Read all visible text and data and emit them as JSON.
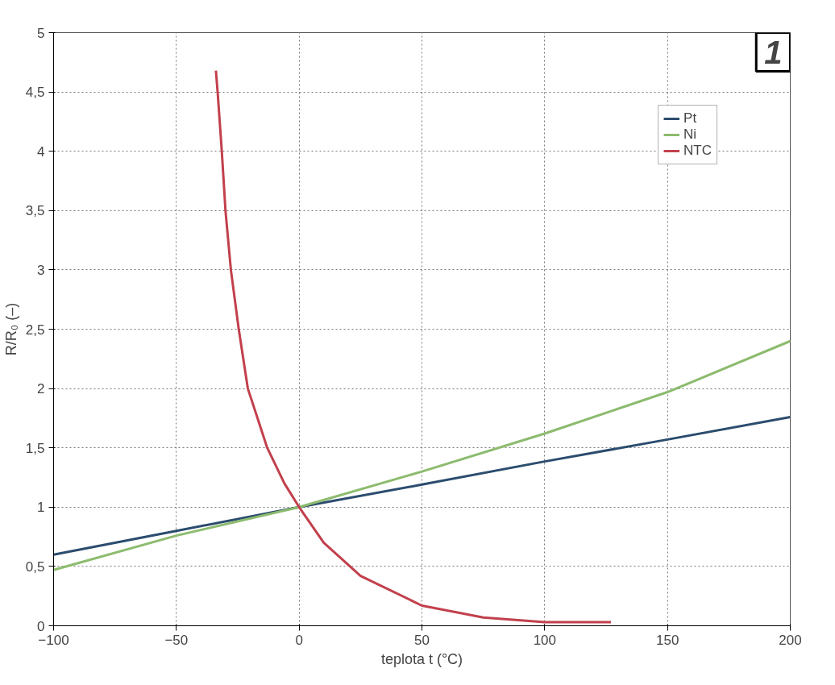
{
  "chart_data": {
    "type": "line",
    "xlabel": "teplota t (°C)",
    "ylabel": "R/R₀ (–)",
    "annotations": [
      "1"
    ],
    "xlim": [
      -100,
      200
    ],
    "xticks": [
      -100,
      -50,
      0,
      50,
      100,
      150,
      200
    ],
    "ylim": [
      0,
      5
    ],
    "yticks": [
      0,
      {
        "value": 0.5,
        "label": "0,5"
      },
      1,
      {
        "value": 1.5,
        "label": "1,5"
      },
      2,
      {
        "value": 2.5,
        "label": "2,5"
      },
      3,
      {
        "value": 3.5,
        "label": "3,5"
      },
      4,
      {
        "value": 4.5,
        "label": "4,5"
      },
      5
    ],
    "grid": true,
    "legend": "top right",
    "line_style": "solid",
    "marker": "none",
    "series": [
      {
        "name": "Pt",
        "color": "#2b4c6e",
        "x": [
          -100,
          -50,
          0,
          50,
          100,
          150,
          200
        ],
        "values": [
          0.6,
          0.8,
          1,
          1.19,
          1.385,
          1.57,
          1.76
        ]
      },
      {
        "name": "Ni",
        "color": "#8cbb6e",
        "x": [
          -100,
          -50,
          0,
          50,
          100,
          150,
          200
        ],
        "values": [
          0.47,
          0.76,
          1,
          1.3,
          1.62,
          1.97,
          2.4
        ]
      },
      {
        "name": "NTC",
        "color": "#c2404c",
        "x": [
          -33.9,
          -33.2,
          -31.5,
          -30,
          -27.8,
          -24.6,
          -20.9,
          -13,
          -6,
          0,
          10,
          25,
          50,
          75,
          100,
          127
        ],
        "values": [
          4.68,
          4.5,
          4,
          3.5,
          3,
          2.5,
          2,
          1.5,
          1.2,
          1,
          0.7,
          0.42,
          0.17,
          0.07,
          0.03,
          0.03
        ]
      }
    ]
  }
}
